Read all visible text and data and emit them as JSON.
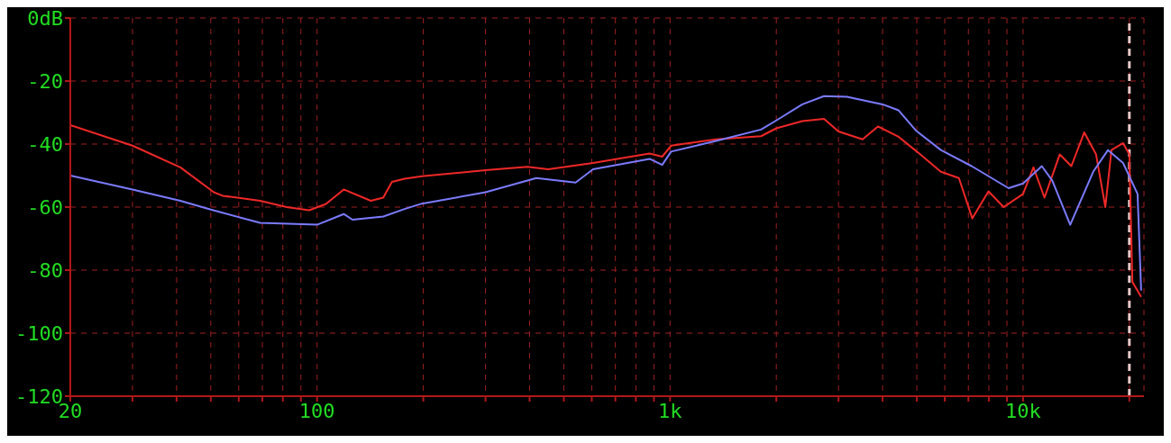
{
  "chart_data": {
    "type": "line",
    "xlim": [
      20,
      22000
    ],
    "ylim": [
      -120,
      0
    ],
    "log": "x",
    "grid": true,
    "marker": "none",
    "line_style": "solid",
    "xticks": [
      20,
      {
        "value": 30,
        "label": null
      },
      {
        "value": 40,
        "label": null
      },
      {
        "value": 50,
        "label": null
      },
      {
        "value": 60,
        "label": null
      },
      {
        "value": 70,
        "label": null
      },
      {
        "value": 80,
        "label": null
      },
      {
        "value": 90,
        "label": null
      },
      100,
      {
        "value": 200,
        "label": null
      },
      {
        "value": 300,
        "label": null
      },
      {
        "value": 400,
        "label": null
      },
      {
        "value": 500,
        "label": null
      },
      {
        "value": 600,
        "label": null
      },
      {
        "value": 700,
        "label": null
      },
      {
        "value": 800,
        "label": null
      },
      {
        "value": 900,
        "label": null
      },
      {
        "value": 1000,
        "label": "1k"
      },
      {
        "value": 2000,
        "label": null
      },
      {
        "value": 3000,
        "label": null
      },
      {
        "value": 4000,
        "label": null
      },
      {
        "value": 5000,
        "label": null
      },
      {
        "value": 6000,
        "label": null
      },
      {
        "value": 7000,
        "label": null
      },
      {
        "value": 8000,
        "label": null
      },
      {
        "value": 9000,
        "label": null
      },
      {
        "value": 10000,
        "label": "10k"
      },
      {
        "value": 20000,
        "label": null
      }
    ],
    "yticks": [
      {
        "value": 0,
        "label": "0dB"
      },
      -20,
      -40,
      -60,
      -80,
      -100,
      -120
    ],
    "series": [
      {
        "color": "#f02828",
        "x": [
          20,
          30,
          41,
          51,
          54,
          69,
          82,
          95,
          106,
          119,
          142,
          154,
          163,
          177,
          198,
          300,
          394,
          452,
          605,
          875,
          950,
          1007,
          1350,
          1810,
          2000,
          2370,
          2730,
          3000,
          3510,
          3880,
          4440,
          5080,
          5850,
          6580,
          7180,
          7980,
          8810,
          10000,
          10700,
          11500,
          12700,
          13700,
          14900,
          16100,
          17100,
          17800,
          19200,
          20000,
          20400,
          21600
        ],
        "values": [
          -34,
          -40.5,
          -47.4,
          -55.3,
          -56.4,
          -58,
          -60,
          -61,
          -59,
          -54.4,
          -58,
          -57,
          -52,
          -51,
          -50.2,
          -48.3,
          -47.2,
          -48,
          -46,
          -43,
          -44,
          -40.5,
          -38.5,
          -37.5,
          -35,
          -32.7,
          -32,
          -36,
          -38.5,
          -34.4,
          -37.7,
          -43,
          -48.8,
          -50.8,
          -63.6,
          -55,
          -60,
          -55.8,
          -47.4,
          -57,
          -43.3,
          -47,
          -36.3,
          -43.3,
          -60,
          -41.9,
          -39.7,
          -43.3,
          -83.7,
          -88.5
        ]
      },
      {
        "color": "#7b7bff",
        "x": [
          20,
          30,
          41,
          50,
          69,
          100,
          119,
          126,
          154,
          177,
          198,
          300,
          418,
          540,
          605,
          875,
          950,
          1007,
          1350,
          1810,
          2000,
          2370,
          2730,
          3170,
          4000,
          4440,
          4970,
          5850,
          7150,
          9100,
          10000,
          11300,
          12100,
          13600,
          15800,
          17400,
          19200,
          21100,
          21600
        ],
        "values": [
          -50,
          -54.4,
          -58,
          -60.8,
          -65,
          -65.6,
          -62.2,
          -64,
          -63,
          -60.6,
          -58.9,
          -55.3,
          -50.8,
          -52.2,
          -48,
          -44.7,
          -46.6,
          -42.4,
          -39,
          -35.4,
          -32.5,
          -27.4,
          -24.8,
          -25,
          -27.4,
          -29.3,
          -35.7,
          -41.9,
          -47,
          -54,
          -52.5,
          -47,
          -51.6,
          -65.6,
          -48.8,
          -41.9,
          -46,
          -55.8,
          -86.5
        ]
      }
    ],
    "ref_lines": [
      {
        "axis": "x",
        "value": 20000,
        "color": "#e8c8c8",
        "line_style": "dashed"
      }
    ]
  }
}
